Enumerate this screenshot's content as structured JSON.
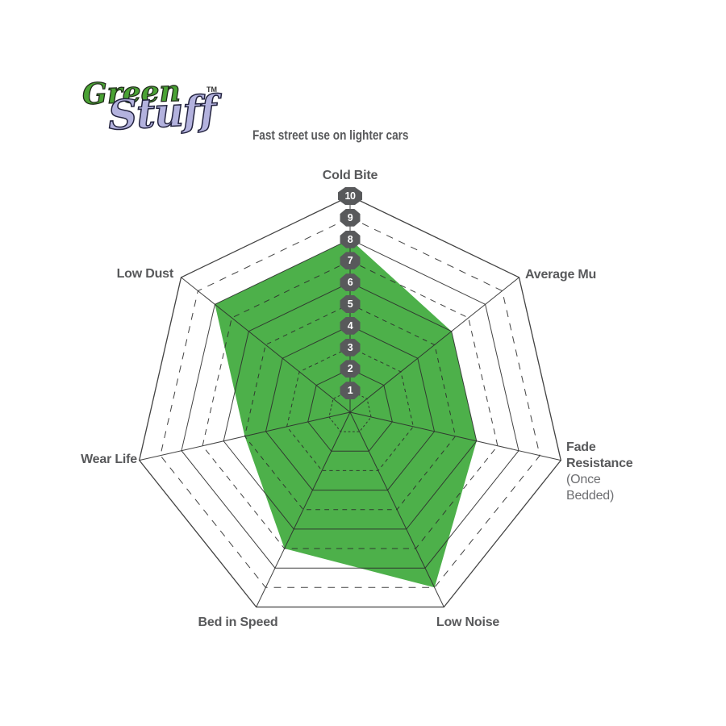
{
  "logo": {
    "green_text": "Green",
    "stuff_text": "Stuff",
    "trademark": "TM",
    "green_color": "#4aa234",
    "stuff_color": "#b3b2de"
  },
  "subtitle": "Fast street use on lighter cars",
  "chart_data": {
    "type": "radar",
    "title": "Fast street use on lighter cars",
    "categories": [
      "Cold Bite",
      "Average Mu",
      "Fade Resistance",
      "Low Noise",
      "Bed in Speed",
      "Wear Life",
      "Low Dust"
    ],
    "category_sublabels": [
      "",
      "",
      "(Once Bedded)",
      "",
      "",
      "",
      ""
    ],
    "values": [
      8,
      6,
      6,
      9,
      7,
      5,
      8
    ],
    "rlim": [
      0,
      10
    ],
    "ring_labels": [
      "1",
      "2",
      "3",
      "4",
      "5",
      "6",
      "7",
      "8",
      "9",
      "10"
    ],
    "grid": {
      "shape": "heptagon",
      "solid_rings": [
        2,
        4,
        6,
        8,
        10
      ],
      "dashed_rings": [
        1,
        3,
        5,
        7,
        9
      ],
      "spokes": true
    },
    "legend": "none",
    "fill_color": "#4db04a",
    "grid_color": "#2e2e2e",
    "badge_color": "#58595b",
    "label_color": "#58595b"
  }
}
